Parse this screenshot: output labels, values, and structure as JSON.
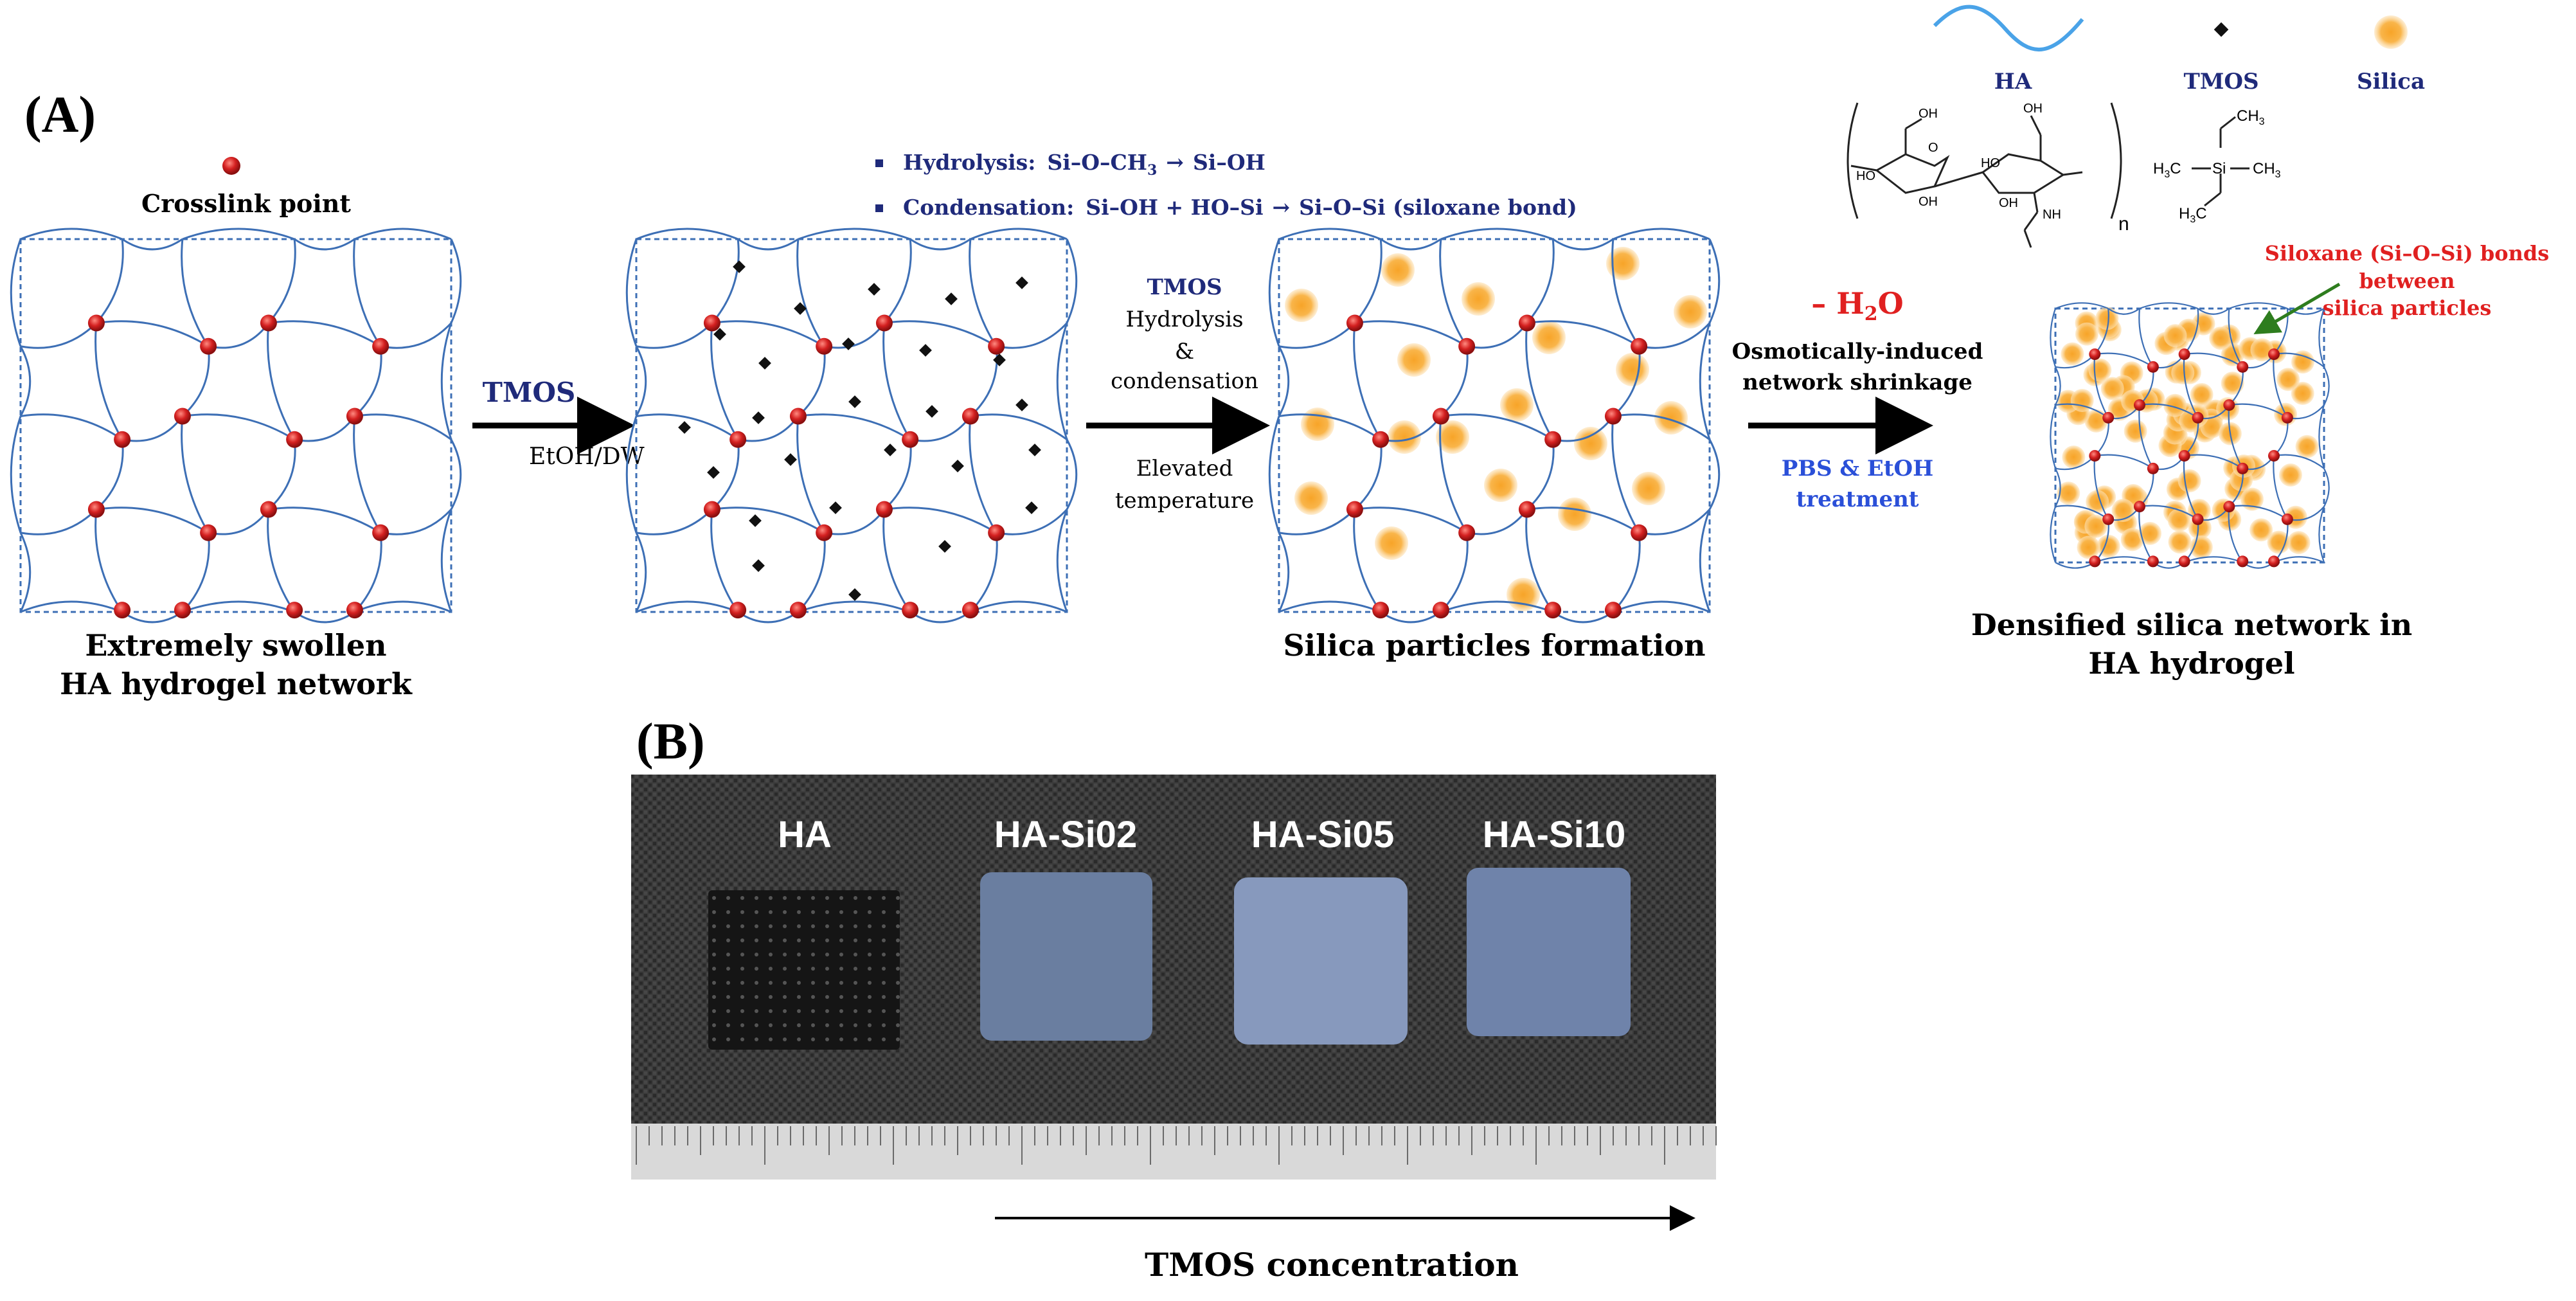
{
  "panel_a": {
    "label": "(A)",
    "legend": {
      "ha": "HA",
      "tmos": "TMOS",
      "silica": "Silica",
      "repeat_n": "n",
      "ha_groups": {
        "oh1": "OH",
        "oh2": "OH",
        "oh3": "HO",
        "oh4": "OH",
        "oh5": "HO",
        "oh6": "OH",
        "nh": "NH",
        "o": "O"
      },
      "tmos_groups": {
        "ch3_top": "CH",
        "h3c_left": "H",
        "ch3_right": "CH",
        "h3c_bottom": "H",
        "si": "Si"
      }
    },
    "crosslink_label": "Crosslink point",
    "reaction_notes": {
      "hydrolysis_prefix": "Hydrolysis:",
      "hydrolysis_lhs": "Si–O–CH",
      "hydrolysis_rhs": "Si–OH",
      "condensation_prefix": "Condensation:",
      "condensation_eq": "Si–OH + HO–Si",
      "condensation_rhs": "Si–O–Si (siloxane bond)"
    },
    "step1": {
      "top": "TMOS",
      "bottom": "EtOH/DW"
    },
    "step2": {
      "line1": "TMOS",
      "line2": "Hydrolysis",
      "line3": "&",
      "line4": "condensation",
      "line5": "Elevated",
      "line6": "temperature"
    },
    "step3": {
      "water": "– H",
      "water_sub": "2",
      "water_tail": "O",
      "line1": "Osmotically-induced",
      "line2": "network shrinkage",
      "line3": "PBS & EtOH",
      "line4": "treatment"
    },
    "captions": {
      "box1_line1": "Extremely swollen",
      "box1_line2": "HA hydrogel network",
      "box3": "Silica particles formation",
      "box4_line1": "Densified silica network in",
      "box4_line2": "HA hydrogel"
    },
    "siloxane_note": {
      "line1": "Siloxane (Si–O–Si) bonds",
      "line2": "between",
      "line3": "silica particles"
    },
    "colors": {
      "network": "#3d6fb5",
      "crosslink": "#d42020",
      "silica": "#f7a428",
      "tmos_dot": "#111111",
      "title_blue": "#1f2a7a",
      "red": "#e02020",
      "treatment_blue": "#2a4fd8"
    }
  },
  "panel_b": {
    "label": "(B)",
    "samples": [
      "HA",
      "HA-Si02",
      "HA-Si05",
      "HA-Si10"
    ],
    "axis_label": "TMOS concentration"
  }
}
